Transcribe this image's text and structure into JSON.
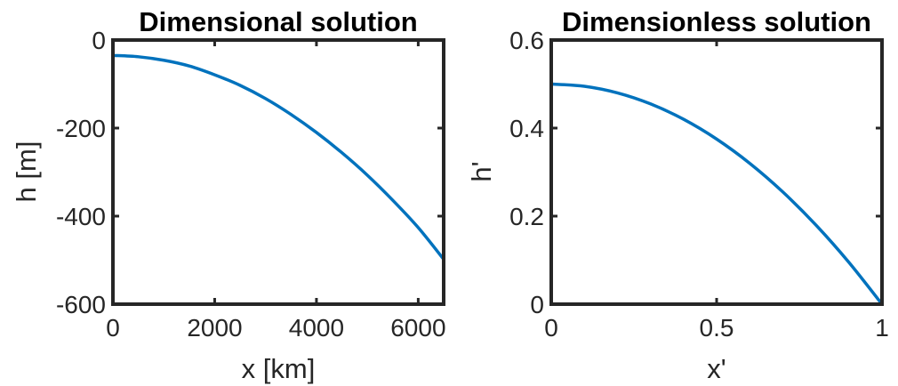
{
  "colors": {
    "line": "#0072bd",
    "axis": "#262626"
  },
  "chart_data": [
    {
      "type": "line",
      "title": "Dimensional solution",
      "xlabel": "x [km]",
      "ylabel": "h [m]",
      "xlim": [
        0,
        6500
      ],
      "ylim": [
        -600,
        0
      ],
      "xticks": [
        0,
        2000,
        4000,
        6000
      ],
      "xtick_labels": [
        "0",
        "2000",
        "4000",
        "6000"
      ],
      "yticks": [
        0,
        -200,
        -400,
        -600
      ],
      "ytick_labels": [
        "0",
        "-200",
        "-400",
        "-600"
      ],
      "grid": false,
      "series": [
        {
          "x": [
            0,
            500,
            1000,
            1500,
            2000,
            2500,
            3000,
            3500,
            4000,
            4500,
            5000,
            5500,
            6000,
            6500
          ],
          "y": [
            -35,
            -38,
            -46,
            -59,
            -79,
            -103,
            -133,
            -169,
            -210,
            -256,
            -307,
            -364,
            -426,
            -498
          ]
        }
      ]
    },
    {
      "type": "line",
      "title": "Dimensionless solution",
      "xlabel": "x'",
      "ylabel": "h'",
      "xlim": [
        0,
        1
      ],
      "ylim": [
        0,
        0.6
      ],
      "xticks": [
        0,
        0.5,
        1
      ],
      "xtick_labels": [
        "0",
        "0.5",
        "1"
      ],
      "yticks": [
        0,
        0.2,
        0.4,
        0.6
      ],
      "ytick_labels": [
        "0",
        "0.2",
        "0.4",
        "0.6"
      ],
      "grid": false,
      "series": [
        {
          "x": [
            0,
            0.1,
            0.2,
            0.3,
            0.4,
            0.5,
            0.6,
            0.7,
            0.8,
            0.9,
            1.0
          ],
          "y": [
            0.5,
            0.495,
            0.48,
            0.455,
            0.42,
            0.375,
            0.32,
            0.255,
            0.18,
            0.095,
            0.0
          ]
        }
      ]
    }
  ]
}
